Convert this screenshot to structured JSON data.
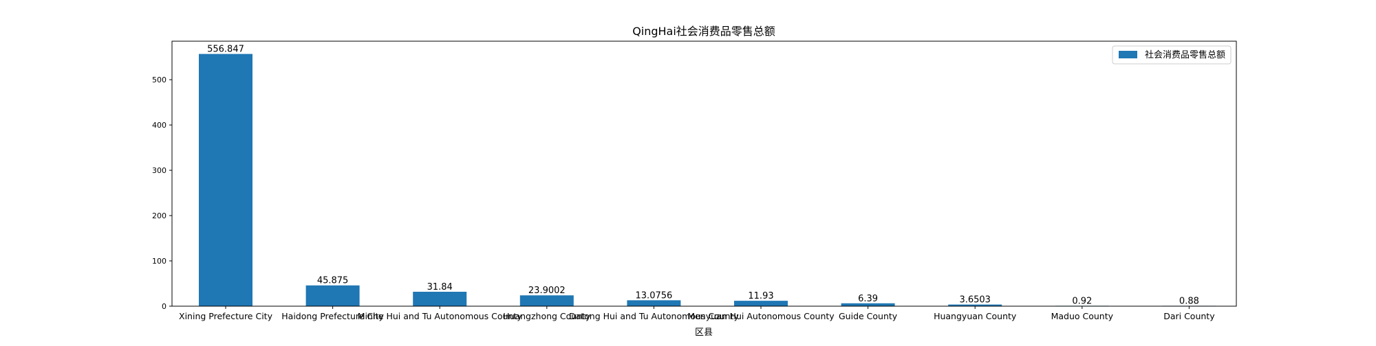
{
  "chart_data": {
    "type": "bar",
    "title": "QingHai社会消费品零售总额",
    "xlabel": "区县",
    "ylabel": "",
    "categories": [
      "Xining Prefecture City",
      "Haidong Prefecture City",
      "Minhe Hui and Tu Autonomous County",
      "Huangzhong County",
      "Datong Hui and Tu Autonomous County",
      "Menyuan Hui Autonomous County",
      "Guide County",
      "Huangyuan County",
      "Maduo County",
      "Dari County"
    ],
    "series": [
      {
        "name": "社会消费品零售总额",
        "color": "#1f77b4",
        "values": [
          556.847,
          45.875,
          31.84,
          23.9002,
          13.0756,
          11.93,
          6.39,
          3.6503,
          0.92,
          0.88
        ],
        "value_labels": [
          "556.847",
          "45.875",
          "31.84",
          "23.9002",
          "13.0756",
          "11.93",
          "6.39",
          "3.6503",
          "0.92",
          "0.88"
        ]
      }
    ],
    "ylim": [
      0,
      585
    ],
    "yticks": [
      0,
      100,
      200,
      300,
      400,
      500
    ],
    "grid": false,
    "legend_position": "top-right"
  }
}
